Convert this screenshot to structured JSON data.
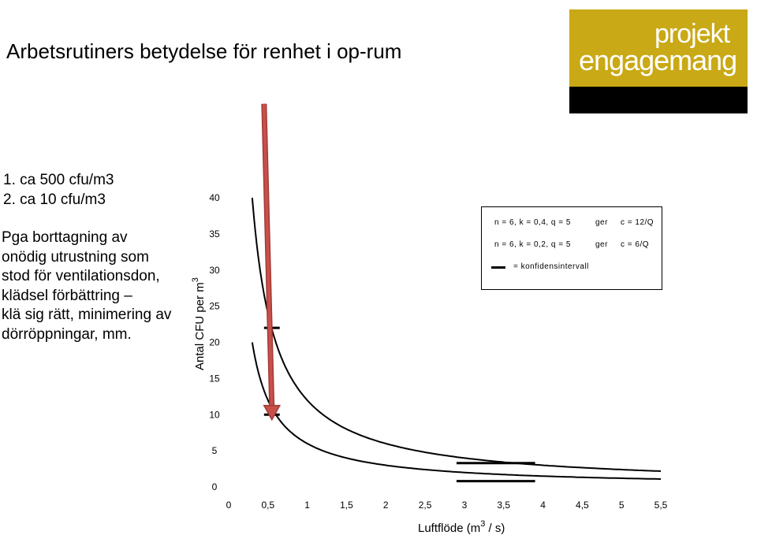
{
  "title": "Arbetsrutiners betydelse för renhet i op-rum",
  "logo": {
    "line1": "projekt",
    "line2": "engagemang",
    "mark": "®"
  },
  "list_items": [
    "1.   ca 500 cfu/m3",
    "2.   ca 10 cfu/m3"
  ],
  "paragraph_lines": [
    "Pga borttagning av",
    "onödig utrustning som",
    "stod för ventilationsdon,",
    "klädsel förbättring –",
    " klä sig rätt, minimering av",
    "dörröppningar, mm."
  ],
  "legend": {
    "row1": {
      "text": "n = 6,  k = 0,4,  q = 5",
      "ger": "ger",
      "c": "c = 12/Q"
    },
    "row2": {
      "text": "n = 6,  k = 0,2,  q = 5",
      "ger": "ger",
      "c": "c = 6/Q"
    },
    "row3": {
      "text": "=  konfidensintervall"
    }
  },
  "colors": {
    "logo_bg": "#c9a915",
    "arrow": "#c8504b",
    "arrow_outline": "#a33a36"
  },
  "chart_data": {
    "type": "line",
    "xlabel": "Luftflöde (m",
    "xlabel_sup": "3",
    "xlabel_end": " / s)",
    "ylabel": "Antal CFU per m",
    "ylabel_sup": "3",
    "xlim": [
      0,
      5.5
    ],
    "ylim": [
      0,
      40
    ],
    "x_ticks": [
      "0",
      "0,5",
      "1",
      "1,5",
      "2",
      "2,5",
      "3",
      "3,5",
      "4",
      "4,5",
      "5",
      "5,5"
    ],
    "y_ticks": [
      "0",
      "5",
      "10",
      "15",
      "20",
      "25",
      "30",
      "35",
      "40"
    ],
    "series": [
      {
        "formula": "c = 12/Q",
        "x_start": 0.3,
        "x_end": 5.5
      },
      {
        "formula": "c = 6/Q",
        "x_start": 0.3,
        "x_end": 5.5
      }
    ],
    "confidence_intervals": [
      {
        "x": [
          0.45,
          0.65
        ],
        "y": 22
      },
      {
        "x": [
          0.45,
          0.65
        ],
        "y": 10
      },
      {
        "x": [
          2.9,
          3.9
        ],
        "y": 3.3
      },
      {
        "x": [
          2.9,
          3.9
        ],
        "y": 0.8
      }
    ],
    "arrow": {
      "from": {
        "x": 0.45,
        "y": 53
      },
      "to": {
        "x": 0.55,
        "y": 9.3
      }
    }
  }
}
